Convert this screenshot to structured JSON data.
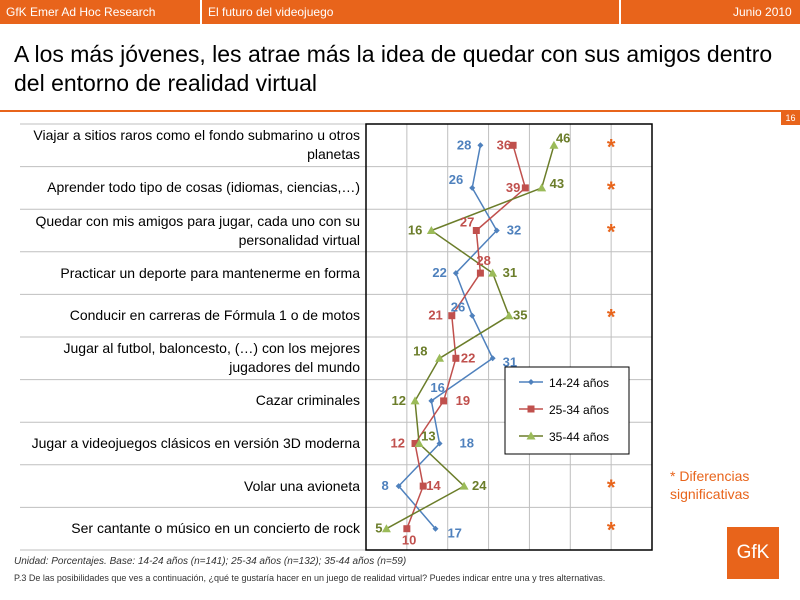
{
  "header": {
    "company": "GfK Emer Ad Hoc Research",
    "study": "El futuro del videojuego",
    "date": "Junio 2010"
  },
  "title": "A los más jóvenes, les atrae más la idea de quedar con sus amigos dentro del entorno de realidad virtual",
  "page_number": "16",
  "significance_mark": "*",
  "significance_note": "* Diferencias significativas",
  "logo_text": "GfK",
  "footnote_base": "Unidad: Porcentajes. Base: 14-24 años (n=141); 25-34 años (n=132); 35-44 años (n=59)",
  "footnote_question": "P.3 De las posibilidades que ves a continuación, ¿qué te gustaría hacer en un juego de realidad virtual? Puedes indicar entre una y tres alternativas.",
  "colors": {
    "accent": "#e8641b",
    "s1": "#4f81bd",
    "s2": "#c0504d",
    "s3": "#6b7d2a",
    "s3_marker": "#9bbb59"
  },
  "chart_data": {
    "type": "line",
    "orientation": "horizontal",
    "categories": [
      "Viajar a sitios raros como el fondo submarino u otros planetas",
      "Aprender todo tipo de cosas (idiomas, ciencias,…)",
      "Quedar con mis amigos para jugar, cada uno con su personalidad virtual",
      "Practicar un deporte para mantenerme en forma",
      "Conducir en carreras de Fórmula 1 o de motos",
      "Jugar al futbol, baloncesto, (…) con los mejores jugadores del mundo",
      "Cazar criminales",
      "Jugar a videojuegos clásicos en versión 3D moderna",
      "Volar una avioneta",
      "Ser cantante o músico en un concierto de rock"
    ],
    "series": [
      {
        "name": "14-24 años",
        "values": [
          28,
          26,
          32,
          22,
          26,
          31,
          16,
          18,
          8,
          17
        ]
      },
      {
        "name": "25-34 años",
        "values": [
          36,
          39,
          27,
          28,
          21,
          22,
          19,
          12,
          14,
          10
        ]
      },
      {
        "name": "35-44 años",
        "values": [
          46,
          43,
          16,
          31,
          35,
          18,
          12,
          13,
          24,
          5
        ]
      }
    ],
    "significant": [
      true,
      true,
      true,
      false,
      true,
      false,
      false,
      false,
      true,
      true
    ],
    "xlim": [
      0,
      70
    ],
    "grid": true,
    "legend_position": "right"
  }
}
